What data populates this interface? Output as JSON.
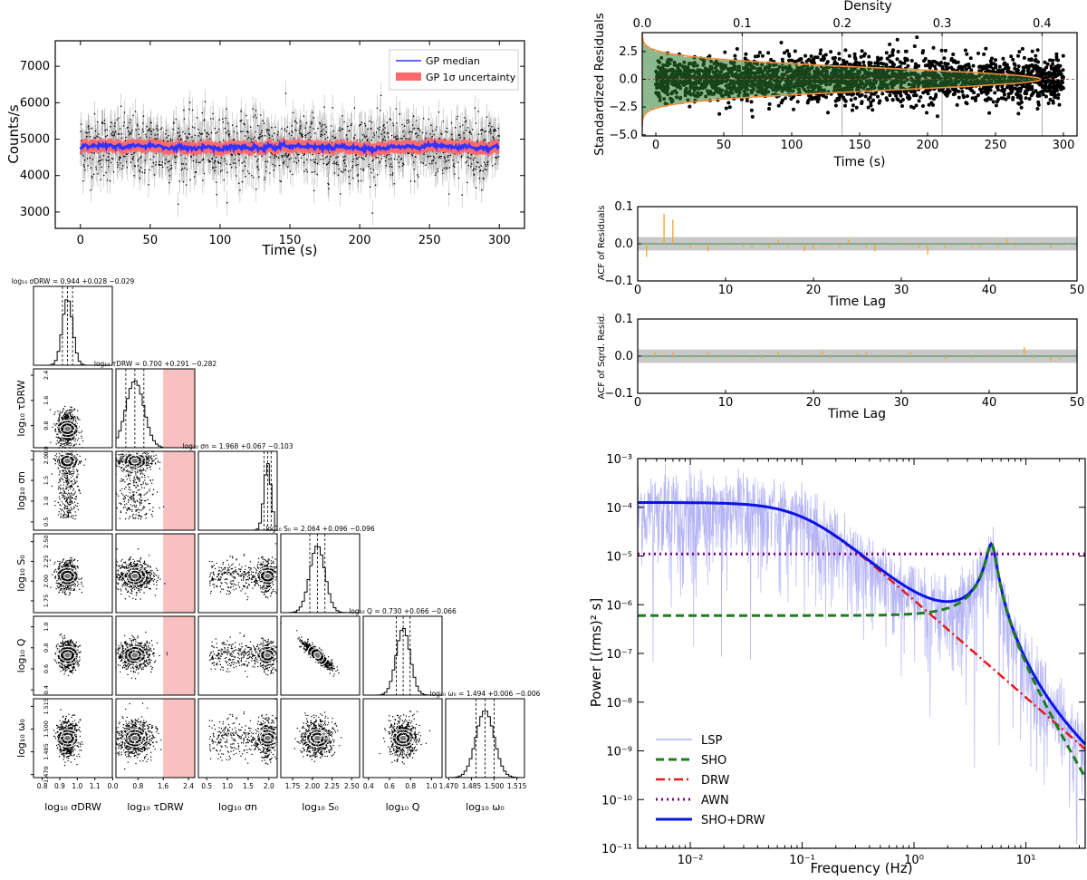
{
  "colors": {
    "gp_median": "#3333ff",
    "gp_band": "#ff6b6b",
    "data_points": "#000000",
    "hist_fill": "#2e7d32",
    "hist_light": "#7fbf7f",
    "normal_pdf": "#f08c3a",
    "acf_bar": "#f5a623",
    "conf_band": "#c8c8c8",
    "lsp": "#b4b4f5",
    "sho": "#1e7d1e",
    "drw": "#e6191e",
    "awn": "#800080",
    "sum": "#0a14e6",
    "prior_red": "#f8c0c0"
  },
  "lightcurve": {
    "type": "line",
    "ylabel": "Counts/s",
    "xlabel": "Time (s)",
    "xlim": [
      -18,
      318
    ],
    "ylim": [
      2550,
      7700
    ],
    "xticks": [
      "0",
      "50",
      "100",
      "150",
      "200",
      "250",
      "300"
    ],
    "yticks": [
      "3000",
      "4000",
      "5000",
      "6000",
      "7000"
    ],
    "legend": [
      "GP median",
      "GP 1σ uncertainty"
    ],
    "legend_position": "upper-right",
    "median_level": 4780,
    "band_halfwidth": 180,
    "scatter_sigma": 450
  },
  "residuals": {
    "type": "scatter",
    "ylabel": "Standardized Residuals",
    "xlabel": "Time (s)",
    "top_label": "Density",
    "xlim": [
      -10,
      310
    ],
    "ylim": [
      -5.1,
      4.2
    ],
    "density_lim": [
      0,
      0.435
    ],
    "xticks": [
      "0",
      "50",
      "100",
      "150",
      "200",
      "250",
      "300"
    ],
    "yticks": [
      "−5.0",
      "−2.5",
      "0.0",
      "2.5"
    ],
    "density_ticks": [
      "0.0",
      "0.1",
      "0.2",
      "0.3",
      "0.4"
    ]
  },
  "acf_resid": {
    "type": "bar",
    "ylabel": "ACF of Residuals",
    "xlabel": "Time Lag",
    "xlim": [
      0,
      50
    ],
    "ylim": [
      -0.1,
      0.1
    ],
    "conf": 0.018,
    "xticks": [
      "0",
      "10",
      "20",
      "30",
      "40",
      "50"
    ],
    "yticks": [
      "0.1",
      "0.0",
      "−0.1"
    ],
    "lags": [
      1,
      2,
      3,
      4,
      5,
      6,
      7,
      8,
      9,
      10,
      11,
      12,
      13,
      14,
      15,
      16,
      17,
      18,
      19,
      20,
      21,
      22,
      23,
      24,
      25,
      26,
      27,
      28,
      29,
      30,
      31,
      32,
      33,
      34,
      35,
      36,
      37,
      38,
      39,
      40,
      41,
      42,
      43,
      44,
      45,
      46,
      47,
      48,
      49,
      50
    ],
    "values": [
      -0.035,
      0.005,
      0.08,
      0.065,
      -0.005,
      -0.01,
      -0.005,
      -0.02,
      -0.005,
      0.004,
      -0.004,
      -0.008,
      -0.01,
      -0.005,
      -0.012,
      0.012,
      -0.008,
      0.004,
      -0.02,
      -0.015,
      -0.008,
      -0.006,
      -0.01,
      0.012,
      -0.005,
      -0.01,
      -0.02,
      0.005,
      -0.005,
      0.004,
      -0.006,
      -0.012,
      -0.03,
      0.004,
      -0.012,
      -0.005,
      -0.004,
      -0.008,
      -0.01,
      0.006,
      -0.01,
      0.015,
      -0.008,
      -0.004,
      -0.006,
      0.005,
      -0.012,
      -0.005,
      -0.002,
      0.004
    ]
  },
  "acf_sq": {
    "type": "bar",
    "ylabel": "ACF of Sqrd. Resid.",
    "xlabel": "Time Lag",
    "xlim": [
      0,
      50
    ],
    "ylim": [
      -0.1,
      0.1
    ],
    "conf": 0.018,
    "xticks": [
      "0",
      "10",
      "20",
      "30",
      "40",
      "50"
    ],
    "yticks": [
      "0.1",
      "0.0",
      "−0.1"
    ],
    "values": [
      -0.005,
      0.01,
      0.008,
      0.01,
      0.004,
      -0.006,
      0.004,
      0.01,
      -0.006,
      -0.004,
      0.006,
      0.004,
      -0.008,
      -0.006,
      0.004,
      0.012,
      0.006,
      -0.004,
      0.005,
      0.006,
      0.014,
      -0.006,
      0.004,
      -0.004,
      0.008,
      0.01,
      -0.004,
      0.006,
      0.004,
      -0.006,
      0.01,
      0.004,
      -0.004,
      0.006,
      -0.008,
      0.005,
      0.004,
      -0.006,
      0.004,
      0.006,
      -0.004,
      0.005,
      0.006,
      0.024,
      -0.006,
      0.004,
      -0.014,
      -0.01,
      0.004,
      0.006
    ]
  },
  "psd": {
    "type": "line",
    "ylabel": "Power [(rms)² s]",
    "xlabel": "Frequency (Hz)",
    "xlim_log10": [
      -2.47,
      1.53
    ],
    "ylim_log10": [
      -11,
      -3
    ],
    "xticks": [
      "10⁻²",
      "10⁻¹",
      "10⁰",
      "10¹"
    ],
    "yticks": [
      "10⁻³",
      "10⁻⁴",
      "10⁻⁵",
      "10⁻⁶",
      "10⁻⁷",
      "10⁻⁸",
      "10⁻⁹",
      "10⁻¹⁰",
      "10⁻¹¹"
    ],
    "legend": [
      "LSP",
      "SHO",
      "DRW",
      "AWN",
      "SHO+DRW"
    ],
    "legend_position": "lower-left",
    "drw": {
      "amp": 0.000125,
      "break_hz": 0.1
    },
    "sho": {
      "peak_hz": 4.95,
      "peak_power": 2.2e-05,
      "floor": 6e-07,
      "Q": 5.4
    },
    "awn_level": 1.1e-05
  },
  "corner": {
    "type": "scatter",
    "params": [
      "log₁₀ σ_DRW",
      "log₁₀ τ_DRW",
      "log₁₀ σ_n",
      "log₁₀ S₀",
      "log₁₀ Q",
      "log₁₀ ω₀"
    ],
    "axis_labels": [
      "log₁₀ σDRW",
      "log₁₀ τDRW",
      "log₁₀ σn",
      "log₁₀ S₀",
      "log₁₀ Q",
      "log₁₀ ω₀"
    ],
    "titles": [
      "log₁₀ σDRW = 0.944 +0.028 −0.029",
      "log₁₀ τDRW = 0.700 +0.291 −0.282",
      "log₁₀ σn = 1.968 +0.067 −0.103",
      "log₁₀ S₀ = 2.064 +0.096 −0.096",
      "log₁₀ Q = 0.730 +0.066 −0.066",
      "log₁₀ ω₀ = 1.494 +0.006 −0.006"
    ],
    "medians": [
      0.944,
      0.7,
      1.968,
      2.064,
      0.73,
      1.494
    ],
    "sigmas": [
      0.029,
      0.286,
      0.085,
      0.096,
      0.066,
      0.006
    ],
    "ranges": [
      [
        0.75,
        1.2
      ],
      [
        0.1,
        2.6
      ],
      [
        0.3,
        2.2
      ],
      [
        1.6,
        2.6
      ],
      [
        0.35,
        1.1
      ],
      [
        1.468,
        1.52
      ]
    ],
    "ticks": [
      [
        "0.8",
        "0.9",
        "1.0",
        "1.1"
      ],
      [
        "0.0",
        "0.8",
        "1.6",
        "2.4"
      ],
      [
        "0.5",
        "1.0",
        "1.5",
        "2.0"
      ],
      [
        "1.75",
        "2.00",
        "2.25",
        "2.50"
      ],
      [
        "0.4",
        "0.6",
        "0.8",
        "1.0"
      ],
      [
        "1.470",
        "1.485",
        "1.500",
        "1.515"
      ]
    ],
    "tick_values": [
      [
        0.8,
        0.9,
        1.0,
        1.1
      ],
      [
        0.0,
        0.8,
        1.6,
        2.4
      ],
      [
        0.5,
        1.0,
        1.5,
        2.0
      ],
      [
        1.75,
        2.0,
        2.25,
        2.5
      ],
      [
        0.4,
        0.6,
        0.8,
        1.0
      ],
      [
        1.47,
        1.485,
        1.5,
        1.515
      ]
    ],
    "tau_prior_excluded_above": 1.6
  }
}
